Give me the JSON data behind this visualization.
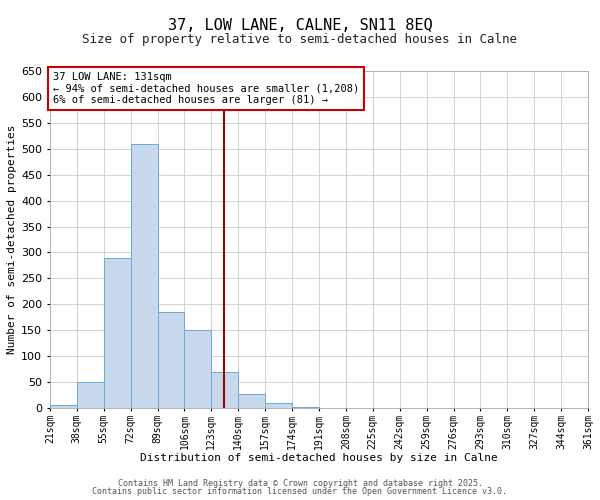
{
  "title": "37, LOW LANE, CALNE, SN11 8EQ",
  "subtitle": "Size of property relative to semi-detached houses in Calne",
  "xlabel": "Distribution of semi-detached houses by size in Calne",
  "ylabel": "Number of semi-detached properties",
  "bin_edges": [
    21,
    38,
    55,
    72,
    89,
    106,
    123,
    140,
    157,
    174,
    191,
    208,
    225,
    242,
    259,
    276,
    293,
    310,
    327,
    344,
    361
  ],
  "bar_heights": [
    5,
    50,
    290,
    510,
    185,
    150,
    70,
    27,
    10,
    2,
    0,
    0,
    0,
    0,
    0,
    0,
    0,
    0,
    0,
    0
  ],
  "bar_color": "#c8d9ee",
  "bar_edge_color": "#6aaad4",
  "vline_x": 131,
  "vline_color": "#aa0000",
  "ylim": [
    0,
    650
  ],
  "yticks": [
    0,
    50,
    100,
    150,
    200,
    250,
    300,
    350,
    400,
    450,
    500,
    550,
    600,
    650
  ],
  "annotation_title": "37 LOW LANE: 131sqm",
  "annotation_line1": "← 94% of semi-detached houses are smaller (1,208)",
  "annotation_line2": "6% of semi-detached houses are larger (81) →",
  "annotation_box_color": "#ffffff",
  "annotation_box_edge": "#cc0000",
  "footer_line1": "Contains HM Land Registry data © Crown copyright and database right 2025.",
  "footer_line2": "Contains public sector information licensed under the Open Government Licence v3.0.",
  "background_color": "#ffffff",
  "grid_color": "#cccccc",
  "title_fontsize": 11,
  "subtitle_fontsize": 9,
  "tick_label_fontsize": 7,
  "axis_label_fontsize": 8,
  "footer_fontsize": 6,
  "annotation_fontsize": 7.5
}
